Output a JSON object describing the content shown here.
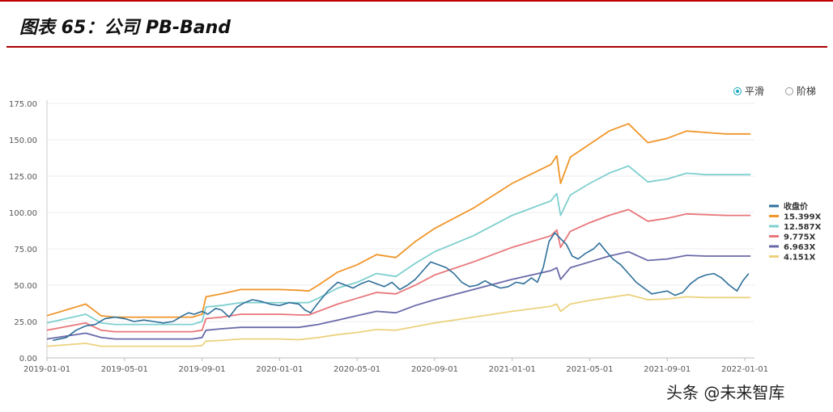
{
  "header": {
    "title": "图表 65：公司 PB-Band"
  },
  "toggle": {
    "smooth_label": "平滑",
    "step_label": "阶梯"
  },
  "watermark": "头条 @未来智库",
  "chart_data": {
    "type": "line",
    "ylim": [
      0,
      175
    ],
    "yticks": [
      "0.00",
      "25.00",
      "50.00",
      "75.00",
      "100.00",
      "125.00",
      "150.00",
      "175.00"
    ],
    "xticks": [
      "2019-01-01",
      "2019-05-01",
      "2019-09-01",
      "2020-01-01",
      "2020-05-01",
      "2020-09-01",
      "2021-01-01",
      "2021-05-01",
      "2021-09-01",
      "2022-01-01"
    ],
    "x_range_months": [
      0,
      36.5
    ],
    "legend_position": "right",
    "series": [
      {
        "name": "收盘价",
        "color": "#2e6f9a",
        "width": 1.6,
        "points": [
          [
            0.3,
            12
          ],
          [
            1,
            14
          ],
          [
            1.5,
            19
          ],
          [
            2,
            22
          ],
          [
            2.5,
            23
          ],
          [
            3,
            27
          ],
          [
            3.5,
            28
          ],
          [
            4,
            27
          ],
          [
            4.5,
            25
          ],
          [
            5,
            26
          ],
          [
            5.5,
            25
          ],
          [
            6,
            24
          ],
          [
            6.5,
            25
          ],
          [
            7,
            29
          ],
          [
            7.3,
            31
          ],
          [
            7.6,
            30
          ],
          [
            8,
            32
          ],
          [
            8.3,
            30
          ],
          [
            8.7,
            34
          ],
          [
            9,
            33
          ],
          [
            9.4,
            28
          ],
          [
            9.8,
            35
          ],
          [
            10.2,
            38
          ],
          [
            10.6,
            40
          ],
          [
            11,
            39
          ],
          [
            11.5,
            37
          ],
          [
            12,
            36
          ],
          [
            12.5,
            38
          ],
          [
            13,
            37
          ],
          [
            13.3,
            33
          ],
          [
            13.6,
            31
          ],
          [
            14,
            38
          ],
          [
            14.5,
            46
          ],
          [
            15,
            52
          ],
          [
            15.4,
            50
          ],
          [
            15.8,
            48
          ],
          [
            16.2,
            51
          ],
          [
            16.6,
            53
          ],
          [
            17,
            51
          ],
          [
            17.4,
            49
          ],
          [
            17.8,
            52
          ],
          [
            18.2,
            47
          ],
          [
            18.6,
            50
          ],
          [
            19,
            54
          ],
          [
            19.4,
            60
          ],
          [
            19.8,
            66
          ],
          [
            20.2,
            64
          ],
          [
            20.6,
            62
          ],
          [
            21,
            58
          ],
          [
            21.4,
            52
          ],
          [
            21.8,
            49
          ],
          [
            22.2,
            50
          ],
          [
            22.6,
            53
          ],
          [
            23,
            50
          ],
          [
            23.4,
            48
          ],
          [
            23.8,
            49
          ],
          [
            24.2,
            52
          ],
          [
            24.6,
            51
          ],
          [
            25,
            55
          ],
          [
            25.3,
            52
          ],
          [
            25.6,
            62
          ],
          [
            25.9,
            80
          ],
          [
            26.2,
            86
          ],
          [
            26.5,
            82
          ],
          [
            26.8,
            78
          ],
          [
            27.1,
            70
          ],
          [
            27.4,
            68
          ],
          [
            27.8,
            72
          ],
          [
            28.2,
            75
          ],
          [
            28.5,
            79
          ],
          [
            28.8,
            74
          ],
          [
            29.2,
            68
          ],
          [
            29.6,
            64
          ],
          [
            30,
            58
          ],
          [
            30.4,
            52
          ],
          [
            30.8,
            48
          ],
          [
            31.2,
            44
          ],
          [
            31.6,
            45
          ],
          [
            32,
            46
          ],
          [
            32.4,
            43
          ],
          [
            32.8,
            45
          ],
          [
            33.2,
            51
          ],
          [
            33.6,
            55
          ],
          [
            34,
            57
          ],
          [
            34.4,
            58
          ],
          [
            34.8,
            55
          ],
          [
            35.2,
            50
          ],
          [
            35.6,
            46
          ],
          [
            35.9,
            53
          ],
          [
            36.2,
            58
          ]
        ]
      },
      {
        "name": "15.399X",
        "color": "#f0962a",
        "width": 1.8,
        "points": [
          [
            0,
            29
          ],
          [
            2,
            37
          ],
          [
            2.8,
            29
          ],
          [
            3.5,
            28
          ],
          [
            7.5,
            28
          ],
          [
            8,
            30
          ],
          [
            8.2,
            42
          ],
          [
            9,
            44
          ],
          [
            10,
            47
          ],
          [
            12,
            47
          ],
          [
            13,
            46.5
          ],
          [
            13.5,
            46
          ],
          [
            14,
            50
          ],
          [
            15,
            59
          ],
          [
            16,
            64
          ],
          [
            17,
            71
          ],
          [
            18,
            69
          ],
          [
            19,
            80
          ],
          [
            20,
            89
          ],
          [
            22,
            103
          ],
          [
            24,
            120
          ],
          [
            26,
            133
          ],
          [
            26.3,
            139
          ],
          [
            26.5,
            120
          ],
          [
            27,
            138
          ],
          [
            28,
            147
          ],
          [
            29,
            156
          ],
          [
            30,
            161
          ],
          [
            31,
            148
          ],
          [
            32,
            151
          ],
          [
            33,
            156
          ],
          [
            34,
            155
          ],
          [
            35,
            154
          ],
          [
            36.3,
            154
          ]
        ]
      },
      {
        "name": "12.587X",
        "color": "#7fcfcf",
        "width": 1.8,
        "points": [
          [
            0,
            24
          ],
          [
            2,
            30
          ],
          [
            2.8,
            24
          ],
          [
            3.5,
            23
          ],
          [
            7.5,
            23
          ],
          [
            8,
            25
          ],
          [
            8.2,
            35
          ],
          [
            9,
            36
          ],
          [
            10,
            38
          ],
          [
            12,
            38
          ],
          [
            13,
            38
          ],
          [
            13.5,
            38
          ],
          [
            14,
            41
          ],
          [
            15,
            48
          ],
          [
            16,
            52
          ],
          [
            17,
            58
          ],
          [
            18,
            56
          ],
          [
            19,
            65
          ],
          [
            20,
            73
          ],
          [
            22,
            84
          ],
          [
            24,
            98
          ],
          [
            26,
            108
          ],
          [
            26.3,
            113
          ],
          [
            26.5,
            98
          ],
          [
            27,
            112
          ],
          [
            28,
            120
          ],
          [
            29,
            127
          ],
          [
            30,
            132
          ],
          [
            31,
            121
          ],
          [
            32,
            123
          ],
          [
            33,
            127
          ],
          [
            34,
            126
          ],
          [
            35,
            126
          ],
          [
            36.3,
            126
          ]
        ]
      },
      {
        "name": "9.775X",
        "color": "#e8767a",
        "width": 1.8,
        "points": [
          [
            0,
            19
          ],
          [
            2,
            24
          ],
          [
            2.8,
            19
          ],
          [
            3.5,
            18
          ],
          [
            7.5,
            18
          ],
          [
            8,
            19
          ],
          [
            8.2,
            27
          ],
          [
            9,
            28
          ],
          [
            10,
            30
          ],
          [
            12,
            30
          ],
          [
            13,
            29.5
          ],
          [
            13.5,
            29.5
          ],
          [
            14,
            32
          ],
          [
            15,
            37
          ],
          [
            16,
            41
          ],
          [
            17,
            45
          ],
          [
            18,
            44
          ],
          [
            19,
            50
          ],
          [
            20,
            57
          ],
          [
            22,
            66
          ],
          [
            24,
            76
          ],
          [
            26,
            84
          ],
          [
            26.3,
            88
          ],
          [
            26.5,
            76
          ],
          [
            27,
            87
          ],
          [
            28,
            93
          ],
          [
            29,
            98
          ],
          [
            30,
            102
          ],
          [
            31,
            94
          ],
          [
            32,
            96
          ],
          [
            33,
            99
          ],
          [
            34,
            98.5
          ],
          [
            35,
            98
          ],
          [
            36.3,
            98
          ]
        ]
      },
      {
        "name": "6.963X",
        "color": "#6a6aaa",
        "width": 1.8,
        "points": [
          [
            0,
            13
          ],
          [
            2,
            17
          ],
          [
            2.8,
            14
          ],
          [
            3.5,
            13
          ],
          [
            7.5,
            13
          ],
          [
            8,
            14
          ],
          [
            8.2,
            19
          ],
          [
            9,
            20
          ],
          [
            10,
            21
          ],
          [
            12,
            21
          ],
          [
            13,
            21
          ],
          [
            14,
            23
          ],
          [
            15,
            26
          ],
          [
            16,
            29
          ],
          [
            17,
            32
          ],
          [
            18,
            31
          ],
          [
            19,
            36
          ],
          [
            20,
            40
          ],
          [
            22,
            47
          ],
          [
            24,
            54
          ],
          [
            26,
            60
          ],
          [
            26.3,
            62
          ],
          [
            26.5,
            54
          ],
          [
            27,
            62
          ],
          [
            28,
            66
          ],
          [
            29,
            70
          ],
          [
            30,
            73
          ],
          [
            31,
            67
          ],
          [
            32,
            68
          ],
          [
            33,
            70.5
          ],
          [
            34,
            70
          ],
          [
            35,
            70
          ],
          [
            36.3,
            70
          ]
        ]
      },
      {
        "name": "4.151X",
        "color": "#ecd27e",
        "width": 1.8,
        "points": [
          [
            0,
            8
          ],
          [
            2,
            10
          ],
          [
            2.8,
            8
          ],
          [
            3.5,
            8
          ],
          [
            7.5,
            8
          ],
          [
            8,
            8.5
          ],
          [
            8.2,
            11.5
          ],
          [
            9,
            12
          ],
          [
            10,
            13
          ],
          [
            12,
            13
          ],
          [
            13,
            12.5
          ],
          [
            14,
            14
          ],
          [
            15,
            16
          ],
          [
            16,
            17.5
          ],
          [
            17,
            19.5
          ],
          [
            18,
            19
          ],
          [
            19,
            21.5
          ],
          [
            20,
            24
          ],
          [
            22,
            28
          ],
          [
            24,
            32
          ],
          [
            26,
            35.5
          ],
          [
            26.3,
            37
          ],
          [
            26.5,
            32
          ],
          [
            27,
            37
          ],
          [
            28,
            39.5
          ],
          [
            29,
            41.5
          ],
          [
            30,
            43.5
          ],
          [
            31,
            40
          ],
          [
            32,
            40.5
          ],
          [
            33,
            42
          ],
          [
            34,
            41.5
          ],
          [
            35,
            41.5
          ],
          [
            36.3,
            41.5
          ]
        ]
      }
    ]
  }
}
